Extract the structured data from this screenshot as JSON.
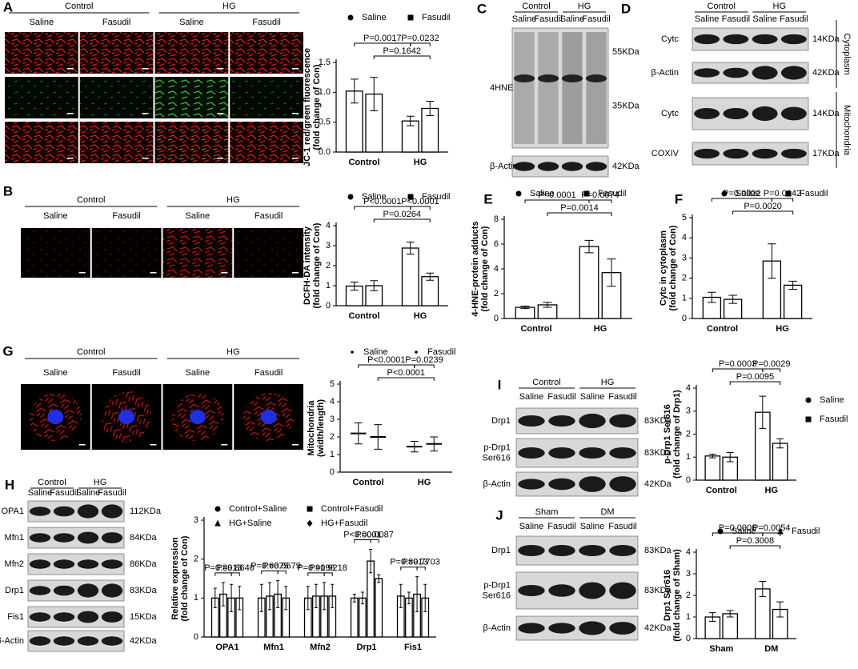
{
  "chart_data": [
    {
      "type": "bar",
      "ylabel": [
        "JC-1 red/green fluorescence",
        "(fold change of Con)"
      ],
      "categories": [
        "Control",
        "HG"
      ],
      "series": [
        {
          "name": "Saline",
          "color": "#000000",
          "marker": "circle",
          "values": [
            1.02,
            0.52
          ],
          "errors": [
            0.2,
            0.08
          ]
        },
        {
          "name": "Fasudil",
          "color": "#000000",
          "marker": "square",
          "values": [
            0.97,
            0.73
          ],
          "errors": [
            0.28,
            0.12
          ]
        }
      ],
      "ylim": [
        0,
        1.5
      ],
      "yticks": [
        {
          "value": 0,
          "label": "0.0"
        },
        0.5,
        {
          "value": 1,
          "label": "1.0"
        },
        1.5
      ],
      "annotations": [
        "P=0.0017",
        "P=0.0232",
        "P=0.1642"
      ]
    },
    {
      "type": "bar",
      "ylabel": [
        "DCFH-DA intensity",
        "(fold change of Con)"
      ],
      "categories": [
        "Control",
        "HG"
      ],
      "series": [
        {
          "name": "Saline",
          "color": "#000000",
          "marker": "circle",
          "values": [
            0.98,
            2.88
          ],
          "errors": [
            0.2,
            0.3
          ]
        },
        {
          "name": "Fasudil",
          "color": "#000000",
          "marker": "square",
          "values": [
            1.0,
            1.45
          ],
          "errors": [
            0.25,
            0.18
          ]
        }
      ],
      "ylim": [
        0,
        4
      ],
      "yticks": [
        0,
        1,
        2,
        3,
        4
      ],
      "annotations": [
        "P<0.0001",
        "P<0.0001",
        "P=0.0264"
      ]
    },
    {
      "type": "bar",
      "panel_label": "E",
      "ylabel": [
        "4-HNE-protein adducts",
        "(fold change of Con)"
      ],
      "categories": [
        "Control",
        "HG"
      ],
      "series": [
        {
          "name": "Saline",
          "color": "#000000",
          "marker": "circle",
          "values": [
            0.9,
            5.8
          ],
          "errors": [
            0.1,
            0.5
          ]
        },
        {
          "name": "Fasudil",
          "color": "#000000",
          "marker": "square",
          "values": [
            1.1,
            3.7
          ],
          "errors": [
            0.2,
            1.1
          ]
        }
      ],
      "ylim": [
        0,
        8
      ],
      "yticks": [
        0,
        2,
        4,
        6,
        8
      ],
      "annotations": [
        "P<0.0001",
        "P=0.0074",
        "P=0.0014"
      ]
    },
    {
      "type": "bar",
      "panel_label": "F",
      "ylabel": [
        "Cytc in cytoplasm",
        "(fold change of Con)"
      ],
      "categories": [
        "Control",
        "HG"
      ],
      "series": [
        {
          "name": "Saline",
          "color": "#000000",
          "marker": "circle",
          "values": [
            1.05,
            2.85
          ],
          "errors": [
            0.25,
            0.85
          ]
        },
        {
          "name": "Fasudil",
          "color": "#000000",
          "marker": "square",
          "values": [
            0.95,
            1.65
          ],
          "errors": [
            0.2,
            0.2
          ]
        }
      ],
      "ylim": [
        0,
        5
      ],
      "yticks": [
        0,
        1,
        2,
        3,
        4,
        5
      ],
      "annotations": [
        "P=0.0022",
        "P=0.0142",
        "P=0.0020"
      ]
    },
    {
      "type": "dot",
      "ylabel": [
        "Mitochondria",
        "(width/length)"
      ],
      "categories": [
        "Control",
        "HG"
      ],
      "series": [
        {
          "name": "Saline",
          "color": "#000000",
          "marker": "dot",
          "values": [
            2.2,
            1.45
          ],
          "errors": [
            0.6,
            0.3
          ]
        },
        {
          "name": "Fasudil",
          "color": "#000000",
          "marker": "dot",
          "values": [
            2.0,
            1.6
          ],
          "errors": [
            0.7,
            0.4
          ]
        }
      ],
      "ylim": [
        0,
        5
      ],
      "yticks": [
        0,
        1,
        2,
        3,
        4,
        5
      ],
      "annotations": [
        "P<0.0001",
        "P=0.0239",
        "P<0.0001"
      ]
    },
    {
      "type": "bar",
      "ylabel": [
        "Relative expression",
        "(fold change of Con)"
      ],
      "categories": [
        "OPA1",
        "Mfn1",
        "Mfn2",
        "Drp1",
        "Fis1"
      ],
      "series": [
        {
          "name": "Control+Saline",
          "color": "#000000",
          "marker": "circle",
          "values": [
            1.0,
            1.0,
            1.0,
            1.0,
            1.05
          ],
          "errors": [
            0.25,
            0.35,
            0.3,
            0.1,
            0.3
          ]
        },
        {
          "name": "Control+Fasudil",
          "color": "#000000",
          "marker": "square",
          "values": [
            1.1,
            1.05,
            1.05,
            1.0,
            1.0
          ],
          "errors": [
            0.3,
            0.35,
            0.3,
            0.15,
            0.15
          ]
        },
        {
          "name": "HG+Saline",
          "color": "#000000",
          "marker": "triangle",
          "values": [
            1.0,
            1.1,
            1.05,
            1.95,
            1.1
          ],
          "errors": [
            0.35,
            0.35,
            0.35,
            0.3,
            0.45
          ]
        },
        {
          "name": "HG+Fasudil",
          "color": "#000000",
          "marker": "diamond",
          "values": [
            1.0,
            1.0,
            1.05,
            1.5,
            1.0
          ],
          "errors": [
            0.3,
            0.3,
            0.3,
            0.1,
            0.35
          ]
        }
      ],
      "ylim": [
        0,
        3
      ],
      "yticks": [
        0,
        1,
        2,
        3
      ],
      "annotations": [
        "P=0.8913",
        "P=0.8640",
        "P=0.6675",
        "P=0.5679",
        "P=0.9196",
        "P=0.9218",
        "P<0.0001",
        "P=0.0087",
        "P=0.8913",
        "P=0.7703"
      ]
    },
    {
      "type": "bar",
      "ylabel": [
        "p-Drp1 Ser616",
        "(fold change of Drp1)"
      ],
      "categories": [
        "Control",
        "HG"
      ],
      "series": [
        {
          "name": "Saline",
          "color": "#000000",
          "marker": "circle",
          "values": [
            1.05,
            2.95
          ],
          "errors": [
            0.08,
            0.7
          ]
        },
        {
          "name": "Fasudil",
          "color": "#000000",
          "marker": "square",
          "values": [
            1.0,
            1.6
          ],
          "errors": [
            0.2,
            0.2
          ]
        }
      ],
      "ylim": [
        0,
        4
      ],
      "yticks": [
        0,
        1,
        2,
        3,
        4
      ],
      "annotations": [
        "P=0.0003",
        "P=0.0029",
        "P=0.0095"
      ]
    },
    {
      "type": "bar",
      "ylabel": [
        "Drp1 Ser616",
        "(fold change of Sham)"
      ],
      "categories": [
        "Sham",
        "DM"
      ],
      "series": [
        {
          "name": "Saline",
          "color": "#000000",
          "marker": "circle",
          "values": [
            1.0,
            2.3
          ],
          "errors": [
            0.2,
            0.35
          ]
        },
        {
          "name": "Fasudil",
          "color": "#000000",
          "marker": "triangle",
          "values": [
            1.15,
            1.35
          ],
          "errors": [
            0.15,
            0.35
          ]
        }
      ],
      "ylim": [
        0,
        4
      ],
      "yticks": [
        0,
        1,
        2,
        3,
        4
      ],
      "annotations": [
        "P=0.0006",
        "P=0.0054",
        "P=0.3008"
      ]
    }
  ],
  "micrographs": [
    {
      "panel_label": "A",
      "groups": [
        "Control",
        "HG"
      ],
      "lanes": [
        "Saline",
        "Fasudil",
        "Saline",
        "Fasudil"
      ]
    },
    {
      "panel_label": "B",
      "groups": [
        "Control",
        "HG"
      ],
      "lanes": [
        "Saline",
        "Fasudil",
        "Saline",
        "Fasudil"
      ]
    },
    {
      "panel_label": "G",
      "groups": [
        "Control",
        "HG"
      ],
      "lanes": [
        "Saline",
        "Fasudil",
        "Saline",
        "Fasudil"
      ]
    }
  ],
  "blots": [
    {
      "panel_label": "C",
      "groups": [
        "Control",
        "HG"
      ],
      "lanes": [
        "Saline",
        "Fasudil",
        "Saline",
        "Fasudil"
      ],
      "rows": [
        {
          "label": "4HNE",
          "sizes": [
            "55KDa",
            "35KDa"
          ]
        },
        {
          "label": "β-Actin",
          "sizes": [
            "42KDa"
          ]
        }
      ]
    },
    {
      "panel_label": "D",
      "groups": [
        "Control",
        "HG"
      ],
      "lanes": [
        "Saline",
        "Fasudil",
        "Saline",
        "Fasudil"
      ],
      "rows": [
        {
          "label": "Cytc",
          "sizes": [
            "14KDa"
          ]
        },
        {
          "label": "β-Actin",
          "sizes": [
            "42KDa"
          ]
        },
        {
          "label": "Cytc",
          "sizes": [
            "14KDa"
          ]
        },
        {
          "label": "COXIV",
          "sizes": [
            "17KDa"
          ]
        }
      ],
      "fractions": [
        "Cytoplasm",
        "Mitochondria"
      ]
    },
    {
      "panel_label": "H",
      "groups": [
        "Control",
        "HG"
      ],
      "lanes": [
        "Saline",
        "Fasudil",
        "Saline",
        "Fasudil"
      ],
      "rows": [
        {
          "label": "OPA1",
          "sizes": [
            "112KDa"
          ]
        },
        {
          "label": "Mfn1",
          "sizes": [
            "84KDa"
          ]
        },
        {
          "label": "Mfn2",
          "sizes": [
            "86KDa"
          ]
        },
        {
          "label": "Drp1",
          "sizes": [
            "83KDa"
          ]
        },
        {
          "label": "Fis1",
          "sizes": [
            "15KDa"
          ]
        },
        {
          "label": "β-Actin",
          "sizes": [
            "42KDa"
          ]
        }
      ]
    },
    {
      "panel_label": "I",
      "groups": [
        "Control",
        "HG"
      ],
      "lanes": [
        "Saline",
        "Fasudil",
        "Saline",
        "Fasudil"
      ],
      "rows": [
        {
          "label": [
            "Drp1"
          ],
          "sizes": [
            "83KDa"
          ]
        },
        {
          "label": [
            "p-Drp1",
            "Ser616"
          ],
          "sizes": [
            "83KDa"
          ]
        },
        {
          "label": [
            "β-Actin"
          ],
          "sizes": [
            "42KDa"
          ]
        }
      ]
    },
    {
      "panel_label": "J",
      "groups": [
        "Sham",
        "DM"
      ],
      "lanes": [
        "Saline",
        "Fasudil",
        "Saline",
        "Fasudil"
      ],
      "rows": [
        {
          "label": [
            "Drp1"
          ],
          "sizes": [
            "83KDa"
          ]
        },
        {
          "label": [
            "p-Drp1",
            "Ser616"
          ],
          "sizes": [
            "83KDa"
          ]
        },
        {
          "label": [
            "β-Actin"
          ],
          "sizes": [
            "42KDa"
          ]
        }
      ]
    }
  ]
}
